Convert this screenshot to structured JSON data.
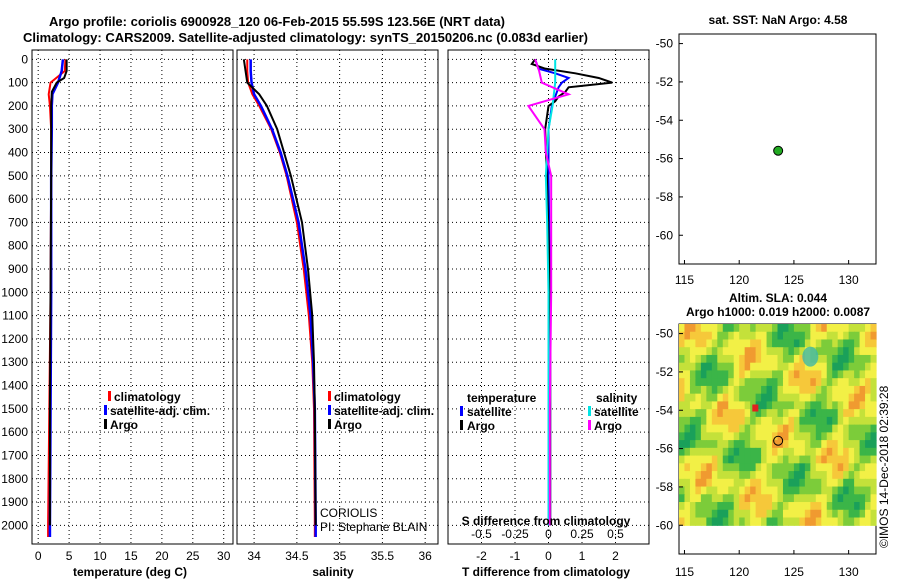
{
  "title": {
    "line1": "Argo profile: coriolis 6900928_120 06-Feb-2015 55.59S 123.56E (NRT data)",
    "line2": "Climatology: CARS2009. Satellite-adjusted climatology: synTS_20150206.nc (0.083d earlier)"
  },
  "colors": {
    "clim": "#ff0000",
    "sat": "#0000ff",
    "argo": "#000000",
    "sat_s": "#00e5e5",
    "argo_s": "#ff00ff"
  },
  "depth_ticks": [
    "0",
    "100",
    "200",
    "300",
    "400",
    "500",
    "600",
    "700",
    "800",
    "900",
    "1000",
    "1100",
    "1200",
    "1300",
    "1400",
    "1500",
    "1600",
    "1700",
    "1800",
    "1900",
    "2000"
  ],
  "chart_data": [
    {
      "type": "line",
      "name": "temperature-panel",
      "xlabel": "temperature (deg C)",
      "ylabel": "depth",
      "xlim": [
        -1,
        31.5
      ],
      "ylim": [
        2080,
        -40
      ],
      "xticks": [
        0,
        5,
        10,
        15,
        20,
        25,
        30
      ],
      "legend": [
        "climatology",
        "satellite-adj. clim.",
        "Argo"
      ],
      "series": [
        {
          "name": "climatology",
          "depth": [
            0,
            50,
            100,
            150,
            200,
            300,
            500,
            1000,
            1500,
            2000,
            2050
          ],
          "values": [
            4.4,
            4.3,
            2.0,
            1.7,
            1.9,
            2.1,
            2.1,
            2.0,
            1.8,
            1.6,
            1.6
          ]
        },
        {
          "name": "satellite-adj. clim.",
          "depth": [
            0,
            50,
            100,
            150,
            200,
            300,
            500,
            1000,
            1500,
            2000,
            2050
          ],
          "values": [
            4.0,
            3.8,
            3.2,
            2.3,
            2.2,
            2.2,
            2.1,
            2.1,
            2.0,
            1.9,
            1.9
          ]
        },
        {
          "name": "Argo",
          "depth": [
            0,
            50,
            80,
            100,
            140,
            200,
            300,
            500,
            1000,
            1500,
            2000
          ],
          "values": [
            4.6,
            4.6,
            4.2,
            3.0,
            2.2,
            2.1,
            2.1,
            2.1,
            2.0,
            1.9,
            1.9
          ]
        }
      ]
    },
    {
      "type": "line",
      "name": "salinity-panel",
      "xlabel": "salinity",
      "ylabel": "depth",
      "xlim": [
        33.8,
        36.15
      ],
      "ylim": [
        2080,
        -40
      ],
      "xticks": [
        "34",
        "34.5",
        "35",
        "35.5",
        "36"
      ],
      "legend": [
        "climatology",
        "satellite-adj. clim.",
        "Argo"
      ],
      "series": [
        {
          "name": "climatology",
          "depth": [
            0,
            50,
            100,
            150,
            200,
            300,
            400,
            500,
            700,
            900,
            1100,
            1300,
            1500,
            2000,
            2050
          ],
          "values": [
            33.92,
            33.92,
            33.93,
            33.98,
            34.06,
            34.2,
            34.3,
            34.38,
            34.5,
            34.58,
            34.64,
            34.68,
            34.7,
            34.71,
            34.71
          ]
        },
        {
          "name": "satellite-adj. clim.",
          "depth": [
            0,
            50,
            100,
            150,
            200,
            300,
            400,
            500,
            700,
            900,
            1100,
            1300,
            1500,
            2000,
            2050
          ],
          "values": [
            33.96,
            33.96,
            33.97,
            34.0,
            34.08,
            34.21,
            34.31,
            34.39,
            34.52,
            34.6,
            34.66,
            34.69,
            34.71,
            34.72,
            34.72
          ]
        },
        {
          "name": "Argo",
          "depth": [
            0,
            50,
            100,
            150,
            200,
            300,
            400,
            500,
            700,
            900,
            1100,
            1300,
            1500,
            2000
          ],
          "values": [
            33.88,
            33.9,
            33.92,
            34.06,
            34.15,
            34.27,
            34.35,
            34.43,
            34.56,
            34.63,
            34.68,
            34.7,
            34.71,
            34.72
          ]
        }
      ],
      "annotation": [
        "CORIOLIS",
        "PI: Stephane BLAIN"
      ]
    },
    {
      "type": "line",
      "name": "difference-panel",
      "xlabel": "T difference from climatology",
      "x2label": "S difference from climatology",
      "xlim": [
        -3,
        3
      ],
      "ylim": [
        2080,
        -40
      ],
      "xticks": [
        "-2",
        "-1",
        "0",
        "1",
        "2"
      ],
      "x2ticks": [
        "-0.5",
        "-0.25",
        "0",
        "0.25",
        "0.5"
      ],
      "legend_left_title": "temperature",
      "legend_right_title": "salinity",
      "legend_left": [
        "satellite",
        "Argo"
      ],
      "legend_right": [
        "satellite",
        "Argo"
      ],
      "series": [
        {
          "name": "T satellite",
          "depth": [
            0,
            40,
            60,
            80,
            100,
            120,
            160,
            200,
            300,
            500,
            1000,
            1500,
            2000
          ],
          "values": [
            -0.4,
            -0.3,
            0.2,
            0.6,
            0.4,
            0.3,
            0.2,
            0.1,
            0.0,
            0.0,
            0.05,
            0.05,
            0.05
          ]
        },
        {
          "name": "T Argo",
          "depth": [
            0,
            20,
            40,
            60,
            80,
            100,
            120,
            140,
            160,
            180,
            200,
            300,
            500,
            1000,
            1500,
            2000
          ],
          "values": [
            -0.4,
            -0.5,
            -0.1,
            0.8,
            1.5,
            1.9,
            0.6,
            0.5,
            0.3,
            0.2,
            0.0,
            -0.1,
            -0.05,
            0.05,
            0.05,
            0.05
          ]
        },
        {
          "name": "S satellite",
          "depth": [
            0,
            100,
            200,
            300,
            500,
            700,
            1000,
            1500,
            2000
          ],
          "values": [
            0.05,
            0.05,
            0.03,
            0.0,
            -0.02,
            -0.01,
            0.0,
            0.0,
            0.0
          ]
        },
        {
          "name": "S Argo",
          "depth": [
            0,
            50,
            100,
            150,
            200,
            300,
            400,
            500,
            1000,
            1500,
            2000
          ],
          "values": [
            -0.1,
            -0.07,
            -0.05,
            0.15,
            -0.15,
            -0.03,
            -0.02,
            0.02,
            0.02,
            0.01,
            0.01
          ]
        }
      ]
    },
    {
      "type": "scatter",
      "name": "sst-map",
      "title": "sat. SST: NaN Argo: 4.58",
      "xlim": [
        114.5,
        132.5
      ],
      "ylim": [
        -61.5,
        -49.5
      ],
      "xticks": [
        "115",
        "120",
        "125",
        "130"
      ],
      "yticks": [
        "-50",
        "-52",
        "-54",
        "-56",
        "-58",
        "-60"
      ],
      "points": [
        {
          "x": 123.56,
          "y": -55.59
        }
      ]
    },
    {
      "type": "heatmap",
      "name": "sla-map",
      "title": "Altim. SLA: 0.044",
      "subtitle": "Argo h1000: 0.019 h2000: 0.0087",
      "xlim": [
        114.5,
        132.5
      ],
      "ylim": [
        -61.5,
        -49.5
      ],
      "xticks": [
        "115",
        "120",
        "125",
        "130"
      ],
      "yticks": [
        "-50",
        "-52",
        "-54",
        "-56",
        "-58",
        "-60"
      ],
      "points": [
        {
          "x": 123.56,
          "y": -55.59
        }
      ],
      "watermark": "©IMOS 14-Dec-2018 02:39:28"
    }
  ]
}
